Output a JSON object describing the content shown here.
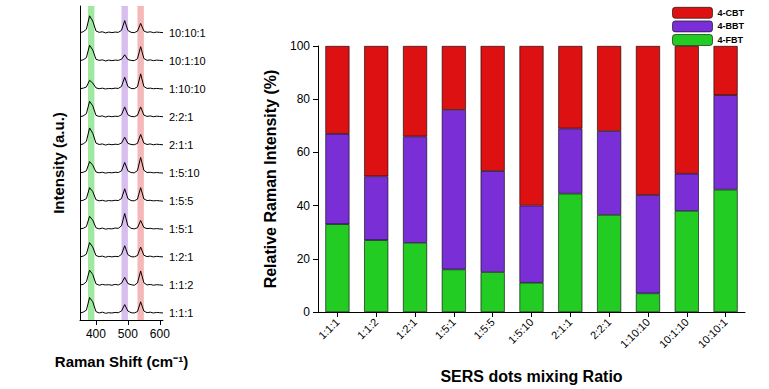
{
  "chart_data": [
    {
      "type": "line",
      "x_label": "Raman Shift (cm⁻¹)",
      "y_label": "Intensity (a.u.)",
      "xlim": [
        350,
        610
      ],
      "xticks": [
        400,
        500,
        600
      ],
      "ylim": [
        0,
        11.2
      ],
      "tick_labels": "x",
      "grid": false,
      "color": "#000000",
      "bands": [
        {
          "from": 375,
          "to": 395,
          "color": "#7fe07f"
        },
        {
          "from": 480,
          "to": 500,
          "color": "#c9a8e8"
        },
        {
          "from": 530,
          "to": 550,
          "color": "#f2a0a0"
        }
      ],
      "x": [
        350,
        360,
        370,
        380,
        390,
        400,
        410,
        420,
        430,
        440,
        450,
        460,
        470,
        480,
        490,
        500,
        510,
        520,
        530,
        540,
        550,
        560,
        570,
        580,
        590,
        600,
        610
      ],
      "series": [
        {
          "name": "1:1:1",
          "values": [
            0.25,
            0.28,
            0.35,
            0.8,
            0.65,
            0.3,
            0.25,
            0.28,
            0.24,
            0.26,
            0.25,
            0.27,
            0.26,
            0.32,
            0.55,
            0.32,
            0.26,
            0.25,
            0.3,
            0.65,
            0.32,
            0.26,
            0.28,
            0.25,
            0.27,
            0.26,
            0.25
          ]
        },
        {
          "name": "1:1:2",
          "values": [
            1.25,
            1.27,
            1.36,
            1.78,
            1.62,
            1.29,
            1.24,
            1.27,
            1.25,
            1.26,
            1.24,
            1.27,
            1.25,
            1.31,
            1.52,
            1.3,
            1.26,
            1.24,
            1.32,
            1.75,
            1.33,
            1.25,
            1.27,
            1.24,
            1.26,
            1.25,
            1.24
          ]
        },
        {
          "name": "1:2:1",
          "values": [
            2.25,
            2.28,
            2.35,
            2.76,
            2.6,
            2.3,
            2.26,
            2.28,
            2.24,
            2.27,
            2.25,
            2.27,
            2.26,
            2.34,
            2.65,
            2.33,
            2.26,
            2.25,
            2.3,
            2.6,
            2.31,
            2.26,
            2.28,
            2.25,
            2.27,
            2.26,
            2.25
          ]
        },
        {
          "name": "1:5:1",
          "values": [
            3.25,
            3.27,
            3.33,
            3.7,
            3.56,
            3.29,
            3.25,
            3.28,
            3.24,
            3.26,
            3.25,
            3.28,
            3.27,
            3.36,
            3.8,
            3.36,
            3.27,
            3.25,
            3.29,
            3.55,
            3.3,
            3.26,
            3.27,
            3.25,
            3.26,
            3.25,
            3.24
          ]
        },
        {
          "name": "1:5:5",
          "values": [
            4.25,
            4.27,
            4.33,
            4.72,
            4.58,
            4.29,
            4.25,
            4.27,
            4.24,
            4.26,
            4.25,
            4.27,
            4.26,
            4.33,
            4.68,
            4.33,
            4.26,
            4.25,
            4.31,
            4.72,
            4.32,
            4.26,
            4.27,
            4.25,
            4.26,
            4.25,
            4.24
          ]
        },
        {
          "name": "1:5:10",
          "values": [
            5.25,
            5.27,
            5.32,
            5.65,
            5.52,
            5.28,
            5.25,
            5.27,
            5.24,
            5.26,
            5.25,
            5.27,
            5.26,
            5.32,
            5.62,
            5.32,
            5.26,
            5.25,
            5.33,
            5.8,
            5.34,
            5.26,
            5.27,
            5.25,
            5.26,
            5.25,
            5.24
          ]
        },
        {
          "name": "2:1:1",
          "values": [
            6.25,
            6.28,
            6.37,
            6.85,
            6.66,
            6.31,
            6.26,
            6.28,
            6.24,
            6.27,
            6.25,
            6.27,
            6.26,
            6.31,
            6.52,
            6.3,
            6.26,
            6.25,
            6.3,
            6.62,
            6.31,
            6.26,
            6.28,
            6.25,
            6.27,
            6.26,
            6.25
          ]
        },
        {
          "name": "2:2:1",
          "values": [
            7.25,
            7.28,
            7.36,
            7.8,
            7.64,
            7.3,
            7.26,
            7.28,
            7.24,
            7.27,
            7.25,
            7.27,
            7.26,
            7.32,
            7.6,
            7.32,
            7.26,
            7.25,
            7.3,
            7.6,
            7.31,
            7.26,
            7.28,
            7.25,
            7.27,
            7.26,
            7.25
          ]
        },
        {
          "name": "1:10:10",
          "values": [
            8.25,
            8.27,
            8.31,
            8.55,
            8.45,
            8.28,
            8.25,
            8.27,
            8.24,
            8.26,
            8.25,
            8.27,
            8.26,
            8.33,
            8.66,
            8.33,
            8.26,
            8.25,
            8.32,
            8.78,
            8.33,
            8.26,
            8.27,
            8.25,
            8.26,
            8.25,
            8.24
          ]
        },
        {
          "name": "10:1:10",
          "values": [
            9.25,
            9.28,
            9.36,
            9.8,
            9.63,
            9.3,
            9.26,
            9.28,
            9.24,
            9.27,
            9.25,
            9.27,
            9.26,
            9.3,
            9.46,
            9.29,
            9.26,
            9.25,
            9.32,
            9.75,
            9.33,
            9.26,
            9.28,
            9.25,
            9.27,
            9.26,
            9.25
          ]
        },
        {
          "name": "10:10:1",
          "values": [
            10.25,
            10.28,
            10.37,
            10.85,
            10.66,
            10.31,
            10.26,
            10.28,
            10.24,
            10.27,
            10.25,
            10.27,
            10.26,
            10.33,
            10.68,
            10.33,
            10.26,
            10.25,
            10.3,
            10.58,
            10.31,
            10.26,
            10.28,
            10.25,
            10.27,
            10.26,
            10.25
          ]
        }
      ]
    },
    {
      "type": "bar",
      "stacked": true,
      "x_label": "SERS dots mixing Ratio",
      "y_label": "Relative Raman Intensity (%)",
      "ylim": [
        0,
        100
      ],
      "yticks": [
        0,
        20,
        40,
        60,
        80,
        100
      ],
      "grid": false,
      "legend": "top-right",
      "categories": [
        "1:1:1",
        "1:1:2",
        "1:2:1",
        "1:5:1",
        "1:5:5",
        "1:5:10",
        "2:1:1",
        "2:2:1",
        "1:10:10",
        "10:1:10",
        "10:10:1"
      ],
      "series": [
        {
          "name": "4-FBT",
          "color": "#22cc22",
          "values": [
            33,
            27,
            26,
            16,
            15,
            11,
            44.5,
            36.5,
            7,
            38,
            46
          ]
        },
        {
          "name": "4-BBT",
          "color": "#7a2ed6",
          "values": [
            34,
            24,
            40,
            60,
            38,
            29,
            24.5,
            31.5,
            37,
            14,
            35.5
          ]
        },
        {
          "name": "4-CBT",
          "color": "#dd1111",
          "values": [
            33,
            49,
            34,
            24,
            47,
            60,
            31,
            32,
            56,
            48,
            18.5
          ]
        }
      ]
    }
  ]
}
